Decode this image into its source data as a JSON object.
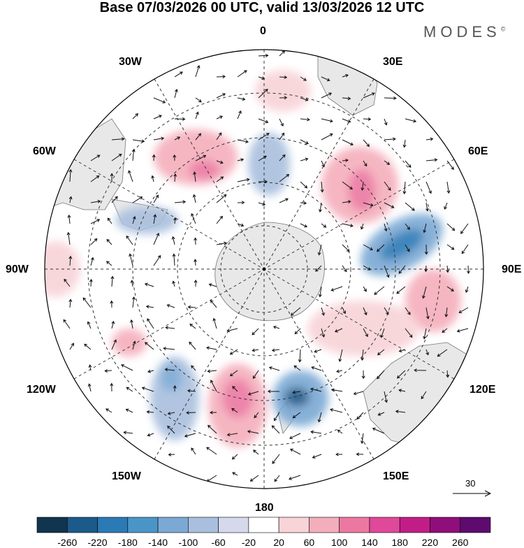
{
  "title": "Base 07/03/2026 00 UTC, valid 13/03/2026 12 UTC",
  "brand": "MODES",
  "brand_mark": "©",
  "longitude_labels": {
    "north": "0",
    "south": "180",
    "west": "90W",
    "east": "90E",
    "nw1": "30W",
    "nw2": "60W",
    "ne1": "30E",
    "ne2": "60E",
    "sw1": "120W",
    "sw2": "150W",
    "se1": "120E",
    "se2": "150E"
  },
  "reference_vector": "30",
  "colorbar": {
    "ticks": [
      "-260",
      "-220",
      "-180",
      "-140",
      "-100",
      "-60",
      "-20",
      "20",
      "60",
      "100",
      "140",
      "180",
      "220",
      "260"
    ],
    "colors": [
      "#11344f",
      "#1c5a89",
      "#2a7ab5",
      "#4a95c8",
      "#7ba9d4",
      "#a9bfde",
      "#d6d9ec",
      "#ffffff",
      "#f8d3d8",
      "#f4aebb",
      "#ec78a2",
      "#e0489a",
      "#c21d86",
      "#8f0e7c",
      "#5e0a6e"
    ]
  },
  "colors": {
    "land": "#e6e6e6",
    "coast": "#666666"
  }
}
